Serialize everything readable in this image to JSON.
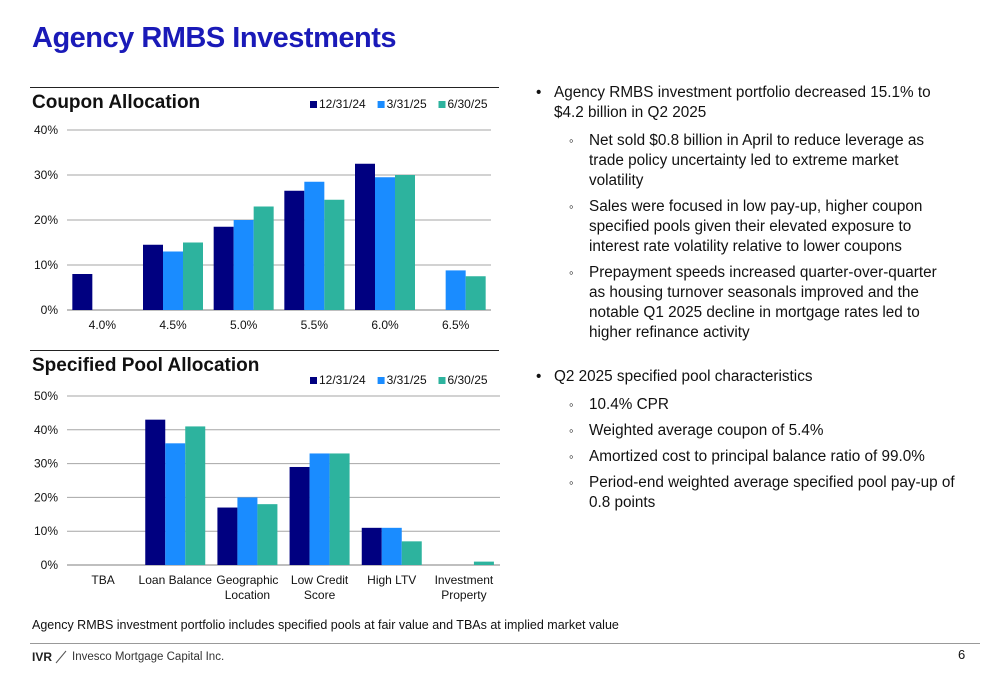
{
  "page": {
    "title": "Agency RMBS Investments",
    "footnote": "Agency RMBS investment portfolio includes specified pools at fair value and TBAs at implied market value",
    "logo_mark": "IVR",
    "logo_text": "Invesco Mortgage Capital Inc.",
    "page_number": "6"
  },
  "colors": {
    "series": [
      "#000080",
      "#1a8cff",
      "#2db39e"
    ],
    "title": "#1a1ab8"
  },
  "chart_data": [
    {
      "type": "bar",
      "title": "Coupon Allocation",
      "categories": [
        "4.0%",
        "4.5%",
        "5.0%",
        "5.5%",
        "6.0%",
        "6.5%"
      ],
      "series": [
        {
          "name": "12/31/24",
          "values": [
            8,
            14.5,
            18.5,
            26.5,
            32.5,
            0
          ]
        },
        {
          "name": "3/31/25",
          "values": [
            0,
            13,
            20,
            28.5,
            29.5,
            8.8
          ]
        },
        {
          "name": "6/30/25",
          "values": [
            0,
            15,
            23,
            24.5,
            30,
            7.5
          ]
        }
      ],
      "yticks": [
        "0%",
        "10%",
        "20%",
        "30%",
        "40%"
      ],
      "ylim": [
        0,
        40
      ],
      "grid": true,
      "legend": "top-right"
    },
    {
      "type": "bar",
      "title": "Specified Pool Allocation",
      "categories": [
        [
          "TBA"
        ],
        [
          "Loan Balance"
        ],
        [
          "Geographic",
          "Location"
        ],
        [
          "Low Credit",
          "Score"
        ],
        [
          "High LTV"
        ],
        [
          "Investment",
          "Property"
        ]
      ],
      "series": [
        {
          "name": "12/31/24",
          "values": [
            0,
            43,
            17,
            29,
            11,
            0
          ]
        },
        {
          "name": "3/31/25",
          "values": [
            0,
            36,
            20,
            33,
            11,
            0
          ]
        },
        {
          "name": "6/30/25",
          "values": [
            0,
            41,
            18,
            33,
            7,
            1
          ]
        }
      ],
      "yticks": [
        "0%",
        "10%",
        "20%",
        "30%",
        "40%",
        "50%"
      ],
      "ylim": [
        0,
        50
      ],
      "grid": true,
      "legend": "top-right"
    }
  ],
  "bullets": [
    {
      "text": "Agency RMBS investment portfolio decreased 15.1% to $4.2 billion in Q2 2025",
      "sub": [
        "Net sold $0.8 billion in April to reduce leverage as trade policy uncertainty led to extreme market volatility",
        "Sales were focused in low pay-up, higher coupon specified pools given their elevated exposure to interest rate volatility relative to lower coupons",
        "Prepayment speeds increased quarter-over-quarter as housing turnover seasonals improved and the notable Q1 2025 decline in mortgage rates led to higher refinance activity"
      ]
    },
    {
      "text": "Q2 2025 specified pool characteristics",
      "sub": [
        "10.4% CPR",
        "Weighted average coupon of 5.4%",
        "Amortized cost to principal balance ratio of 99.0%",
        "Period-end weighted average specified pool pay-up of 0.8 points"
      ]
    }
  ]
}
